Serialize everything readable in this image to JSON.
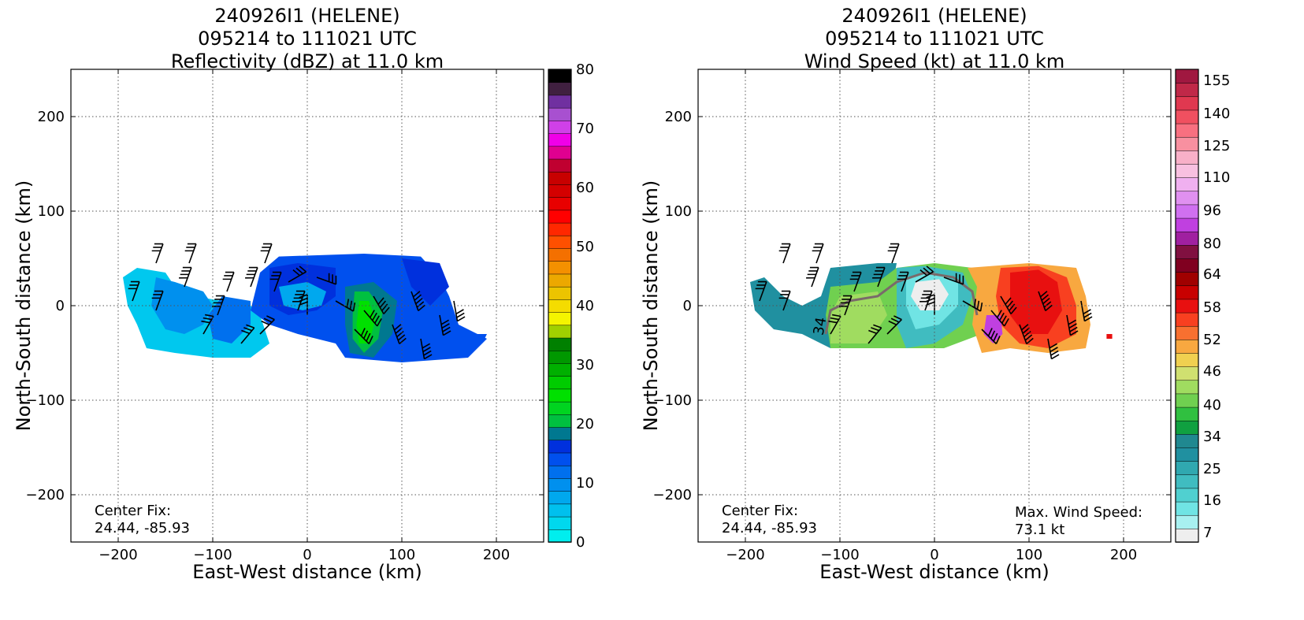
{
  "panels": [
    {
      "title_line1": "240926I1 (HELENE)",
      "title_line2": "095214 to 111021 UTC",
      "title_line3": "Reflectivity (dBZ) at 11.0 km",
      "center_fix_label": "Center Fix:",
      "center_fix_value": "24.44, -85.93"
    },
    {
      "title_line1": "240926I1 (HELENE)",
      "title_line2": "095214 to 111021 UTC",
      "title_line3": "Wind Speed (kt) at 11.0 km",
      "center_fix_label": "Center Fix:",
      "center_fix_value": "24.44, -85.93",
      "max_wind_label": "Max. Wind Speed:",
      "max_wind_value": "73.1 kt",
      "contour_label": "34"
    }
  ],
  "chart_data": [
    {
      "type": "heatmap",
      "title": "240926I1 (HELENE) 095214 to 111021 UTC Reflectivity (dBZ) at 11.0 km",
      "xlabel": "East-West distance (km)",
      "ylabel": "North-South distance (km)",
      "xlim": [
        -250,
        250
      ],
      "ylim": [
        -250,
        250
      ],
      "xticks": [
        -200,
        -100,
        0,
        100,
        200
      ],
      "yticks": [
        -200,
        -100,
        0,
        100,
        200
      ],
      "xticklabels": [
        "−200",
        "−100",
        "0",
        "100",
        "200"
      ],
      "yticklabels": [
        "−200",
        "−100",
        "0",
        "100",
        "200"
      ],
      "grid": true,
      "colorbar": {
        "ticks": [
          0,
          10,
          20,
          30,
          40,
          50,
          60,
          70,
          80
        ],
        "range": [
          0,
          80
        ],
        "colors": [
          "#00eeee",
          "#00d8ee",
          "#00c0ee",
          "#00a8ee",
          "#0090ee",
          "#0070ee",
          "#0050ee",
          "#0030dd",
          "#007890",
          "#00c040",
          "#00d420",
          "#00e000",
          "#00cc00",
          "#00b000",
          "#009800",
          "#008000",
          "#a0d000",
          "#f4f400",
          "#f4dc00",
          "#ecc400",
          "#eca800",
          "#f49000",
          "#f47000",
          "#ff5000",
          "#ff2800",
          "#ff0000",
          "#e80000",
          "#d40000",
          "#c80000",
          "#c00030",
          "#e00090",
          "#f000e8",
          "#d040e8",
          "#a850d0",
          "#7030a0",
          "#402040",
          "#000000"
        ]
      },
      "regions": [
        {
          "x": [
            -190,
            200
          ],
          "y": [
            -60,
            55
          ],
          "max_dbz": 32,
          "note": "reflectivity echoes east of center, green maximum near x=60"
        }
      ]
    },
    {
      "type": "heatmap",
      "title": "240926I1 (HELENE) 095214 to 111021 UTC Wind Speed (kt) at 11.0 km",
      "xlabel": "East-West distance (km)",
      "ylabel": "North-South distance (km)",
      "xlim": [
        -250,
        250
      ],
      "ylim": [
        -250,
        250
      ],
      "xticks": [
        -200,
        -100,
        0,
        100,
        200
      ],
      "yticks": [
        -200,
        -100,
        0,
        100,
        200
      ],
      "xticklabels": [
        "−200",
        "−100",
        "0",
        "100",
        "200"
      ],
      "yticklabels": [
        "−200",
        "−100",
        "0",
        "100",
        "200"
      ],
      "grid": true,
      "colorbar": {
        "ticks": [
          7,
          16,
          25,
          34,
          40,
          46,
          52,
          58,
          64,
          80,
          96,
          110,
          125,
          140,
          155
        ],
        "colors": [
          "#eeeeee",
          "#a8f0f0",
          "#70e4e4",
          "#50d0d0",
          "#40bcc0",
          "#30a8b0",
          "#2090a0",
          "#208890",
          "#10a040",
          "#30c040",
          "#70d050",
          "#a0dc60",
          "#d0e070",
          "#f0d050",
          "#f8a840",
          "#f87030",
          "#f84020",
          "#e81010",
          "#c80000",
          "#a00000",
          "#800020",
          "#801040",
          "#a020a0",
          "#c040e0",
          "#d070f0",
          "#e090f0",
          "#f0b0f0",
          "#f8c0e0",
          "#f8b0c8",
          "#f890a0",
          "#f87080",
          "#f05060",
          "#e03850",
          "#c02848",
          "#a01840"
        ]
      },
      "max_wind_speed_kt": 73.1
    }
  ]
}
